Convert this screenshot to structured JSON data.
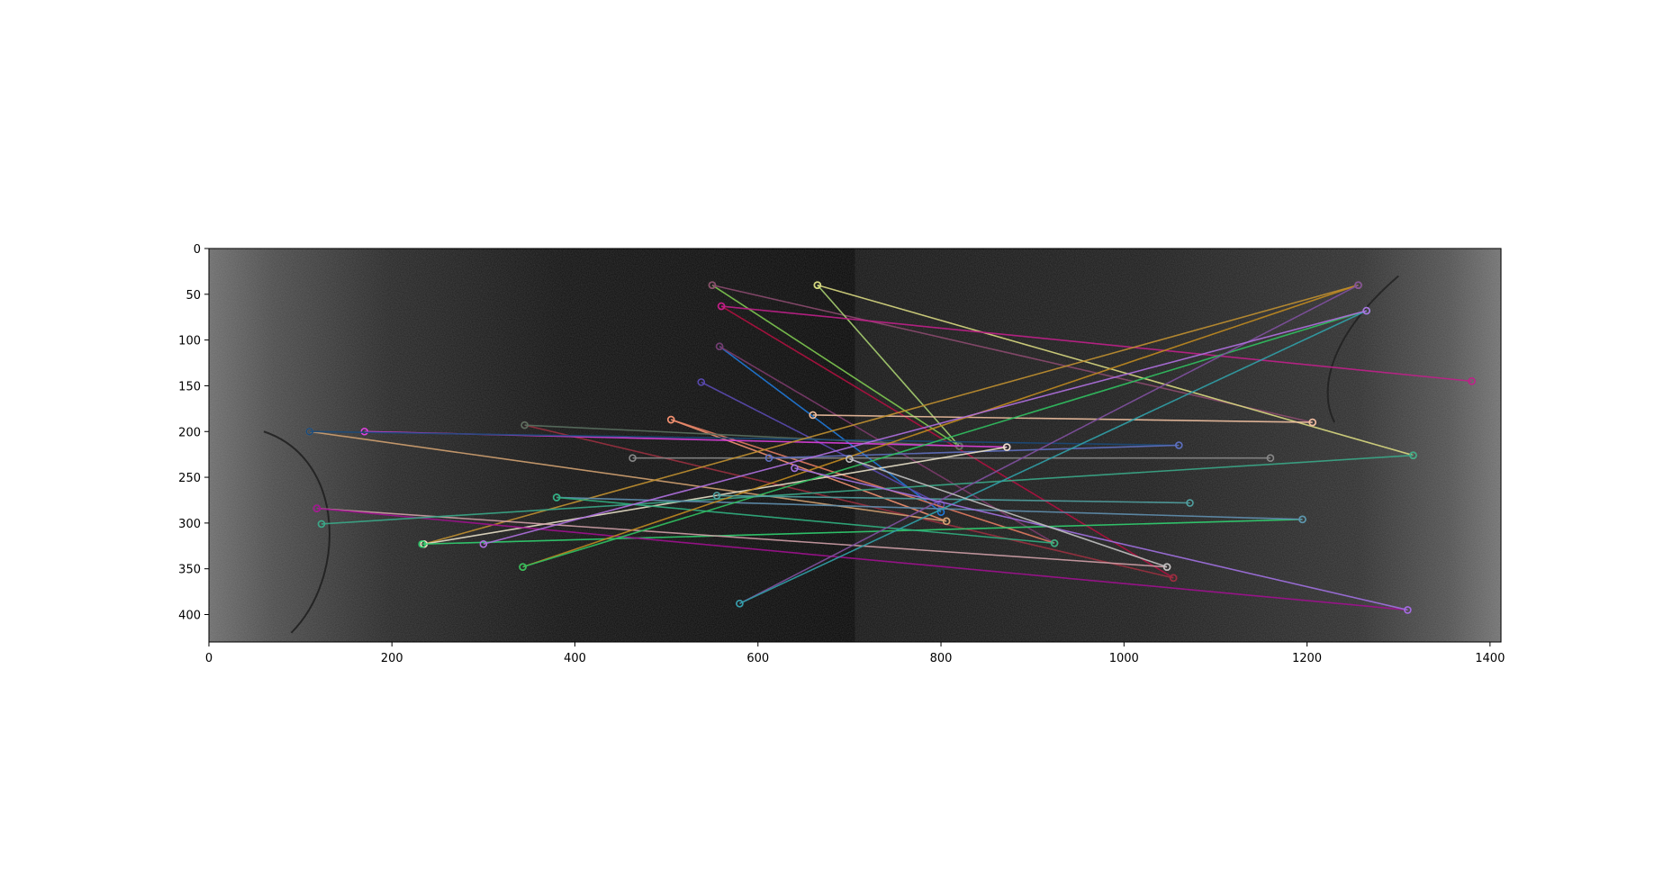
{
  "chart_data": {
    "type": "image-feature-matches",
    "title": "",
    "xlabel": "",
    "ylabel": "",
    "image_size": [
      1412,
      430
    ],
    "xlim": [
      0,
      1412
    ],
    "ylim": [
      430,
      0
    ],
    "divider_x": 706,
    "x_ticks": [
      0,
      200,
      400,
      600,
      800,
      1000,
      1200,
      1400
    ],
    "y_ticks": [
      0,
      50,
      100,
      150,
      200,
      250,
      300,
      350,
      400
    ],
    "x_tick_labels": [
      "0",
      "200",
      "400",
      "600",
      "800",
      "1000",
      "1200",
      "1400"
    ],
    "y_tick_labels": [
      "0",
      "50",
      "100",
      "150",
      "200",
      "250",
      "300",
      "350",
      "400"
    ],
    "matches": [
      {
        "x1": 550,
        "y1": 40,
        "x2": 820,
        "y2": 216,
        "color": "#7ec850"
      },
      {
        "x1": 550,
        "y1": 40,
        "x2": 1206,
        "y2": 190,
        "color": "#8a4a6e"
      },
      {
        "x1": 665,
        "y1": 40,
        "x2": 820,
        "y2": 216,
        "color": "#a8d070"
      },
      {
        "x1": 665,
        "y1": 40,
        "x2": 1316,
        "y2": 226,
        "color": "#d8d880"
      },
      {
        "x1": 560,
        "y1": 63,
        "x2": 1054,
        "y2": 360,
        "color": "#b01040"
      },
      {
        "x1": 560,
        "y1": 63,
        "x2": 1380,
        "y2": 145,
        "color": "#c0208a"
      },
      {
        "x1": 558,
        "y1": 107,
        "x2": 800,
        "y2": 288,
        "color": "#1f78d8"
      },
      {
        "x1": 558,
        "y1": 107,
        "x2": 924,
        "y2": 322,
        "color": "#7a3a6a"
      },
      {
        "x1": 538,
        "y1": 146,
        "x2": 800,
        "y2": 280,
        "color": "#5a4ab0"
      },
      {
        "x1": 505,
        "y1": 187,
        "x2": 924,
        "y2": 322,
        "color": "#e07a60"
      },
      {
        "x1": 505,
        "y1": 187,
        "x2": 806,
        "y2": 298,
        "color": "#f09070"
      },
      {
        "x1": 660,
        "y1": 182,
        "x2": 1206,
        "y2": 190,
        "color": "#f0c0a0"
      },
      {
        "x1": 345,
        "y1": 193,
        "x2": 1054,
        "y2": 360,
        "color": "#9a3040"
      },
      {
        "x1": 345,
        "y1": 193,
        "x2": 820,
        "y2": 216,
        "color": "#5a7060"
      },
      {
        "x1": 170,
        "y1": 200,
        "x2": 872,
        "y2": 217,
        "color": "#e040e0"
      },
      {
        "x1": 110,
        "y1": 200,
        "x2": 806,
        "y2": 298,
        "color": "#d0a070"
      },
      {
        "x1": 110,
        "y1": 200,
        "x2": 1060,
        "y2": 215,
        "color": "#1a4a7a"
      },
      {
        "x1": 463,
        "y1": 229,
        "x2": 1160,
        "y2": 229,
        "color": "#888888"
      },
      {
        "x1": 612,
        "y1": 229,
        "x2": 1060,
        "y2": 215,
        "color": "#6070c0"
      },
      {
        "x1": 235,
        "y1": 323,
        "x2": 1256,
        "y2": 40,
        "color": "#c09030"
      },
      {
        "x1": 235,
        "y1": 323,
        "x2": 872,
        "y2": 217,
        "color": "#e8e0c8"
      },
      {
        "x1": 233,
        "y1": 323,
        "x2": 1195,
        "y2": 296,
        "color": "#30d070"
      },
      {
        "x1": 118,
        "y1": 284,
        "x2": 1047,
        "y2": 348,
        "color": "#d0a0a8"
      },
      {
        "x1": 118,
        "y1": 284,
        "x2": 1310,
        "y2": 395,
        "color": "#a01090"
      },
      {
        "x1": 123,
        "y1": 301,
        "x2": 1316,
        "y2": 226,
        "color": "#3aa888"
      },
      {
        "x1": 380,
        "y1": 272,
        "x2": 1195,
        "y2": 296,
        "color": "#6090b0"
      },
      {
        "x1": 380,
        "y1": 272,
        "x2": 924,
        "y2": 322,
        "color": "#30b080"
      },
      {
        "x1": 343,
        "y1": 348,
        "x2": 1256,
        "y2": 40,
        "color": "#c08a20"
      },
      {
        "x1": 343,
        "y1": 348,
        "x2": 1265,
        "y2": 68,
        "color": "#30c060"
      },
      {
        "x1": 555,
        "y1": 270,
        "x2": 1072,
        "y2": 278,
        "color": "#50a0a0"
      },
      {
        "x1": 580,
        "y1": 388,
        "x2": 1256,
        "y2": 40,
        "color": "#8050a0"
      },
      {
        "x1": 580,
        "y1": 388,
        "x2": 1265,
        "y2": 68,
        "color": "#30a0a8"
      },
      {
        "x1": 300,
        "y1": 323,
        "x2": 1265,
        "y2": 68,
        "color": "#b070e0"
      },
      {
        "x1": 640,
        "y1": 240,
        "x2": 1310,
        "y2": 395,
        "color": "#a070e0"
      },
      {
        "x1": 700,
        "y1": 230,
        "x2": 1047,
        "y2": 348,
        "color": "#c0c0c0"
      }
    ]
  }
}
